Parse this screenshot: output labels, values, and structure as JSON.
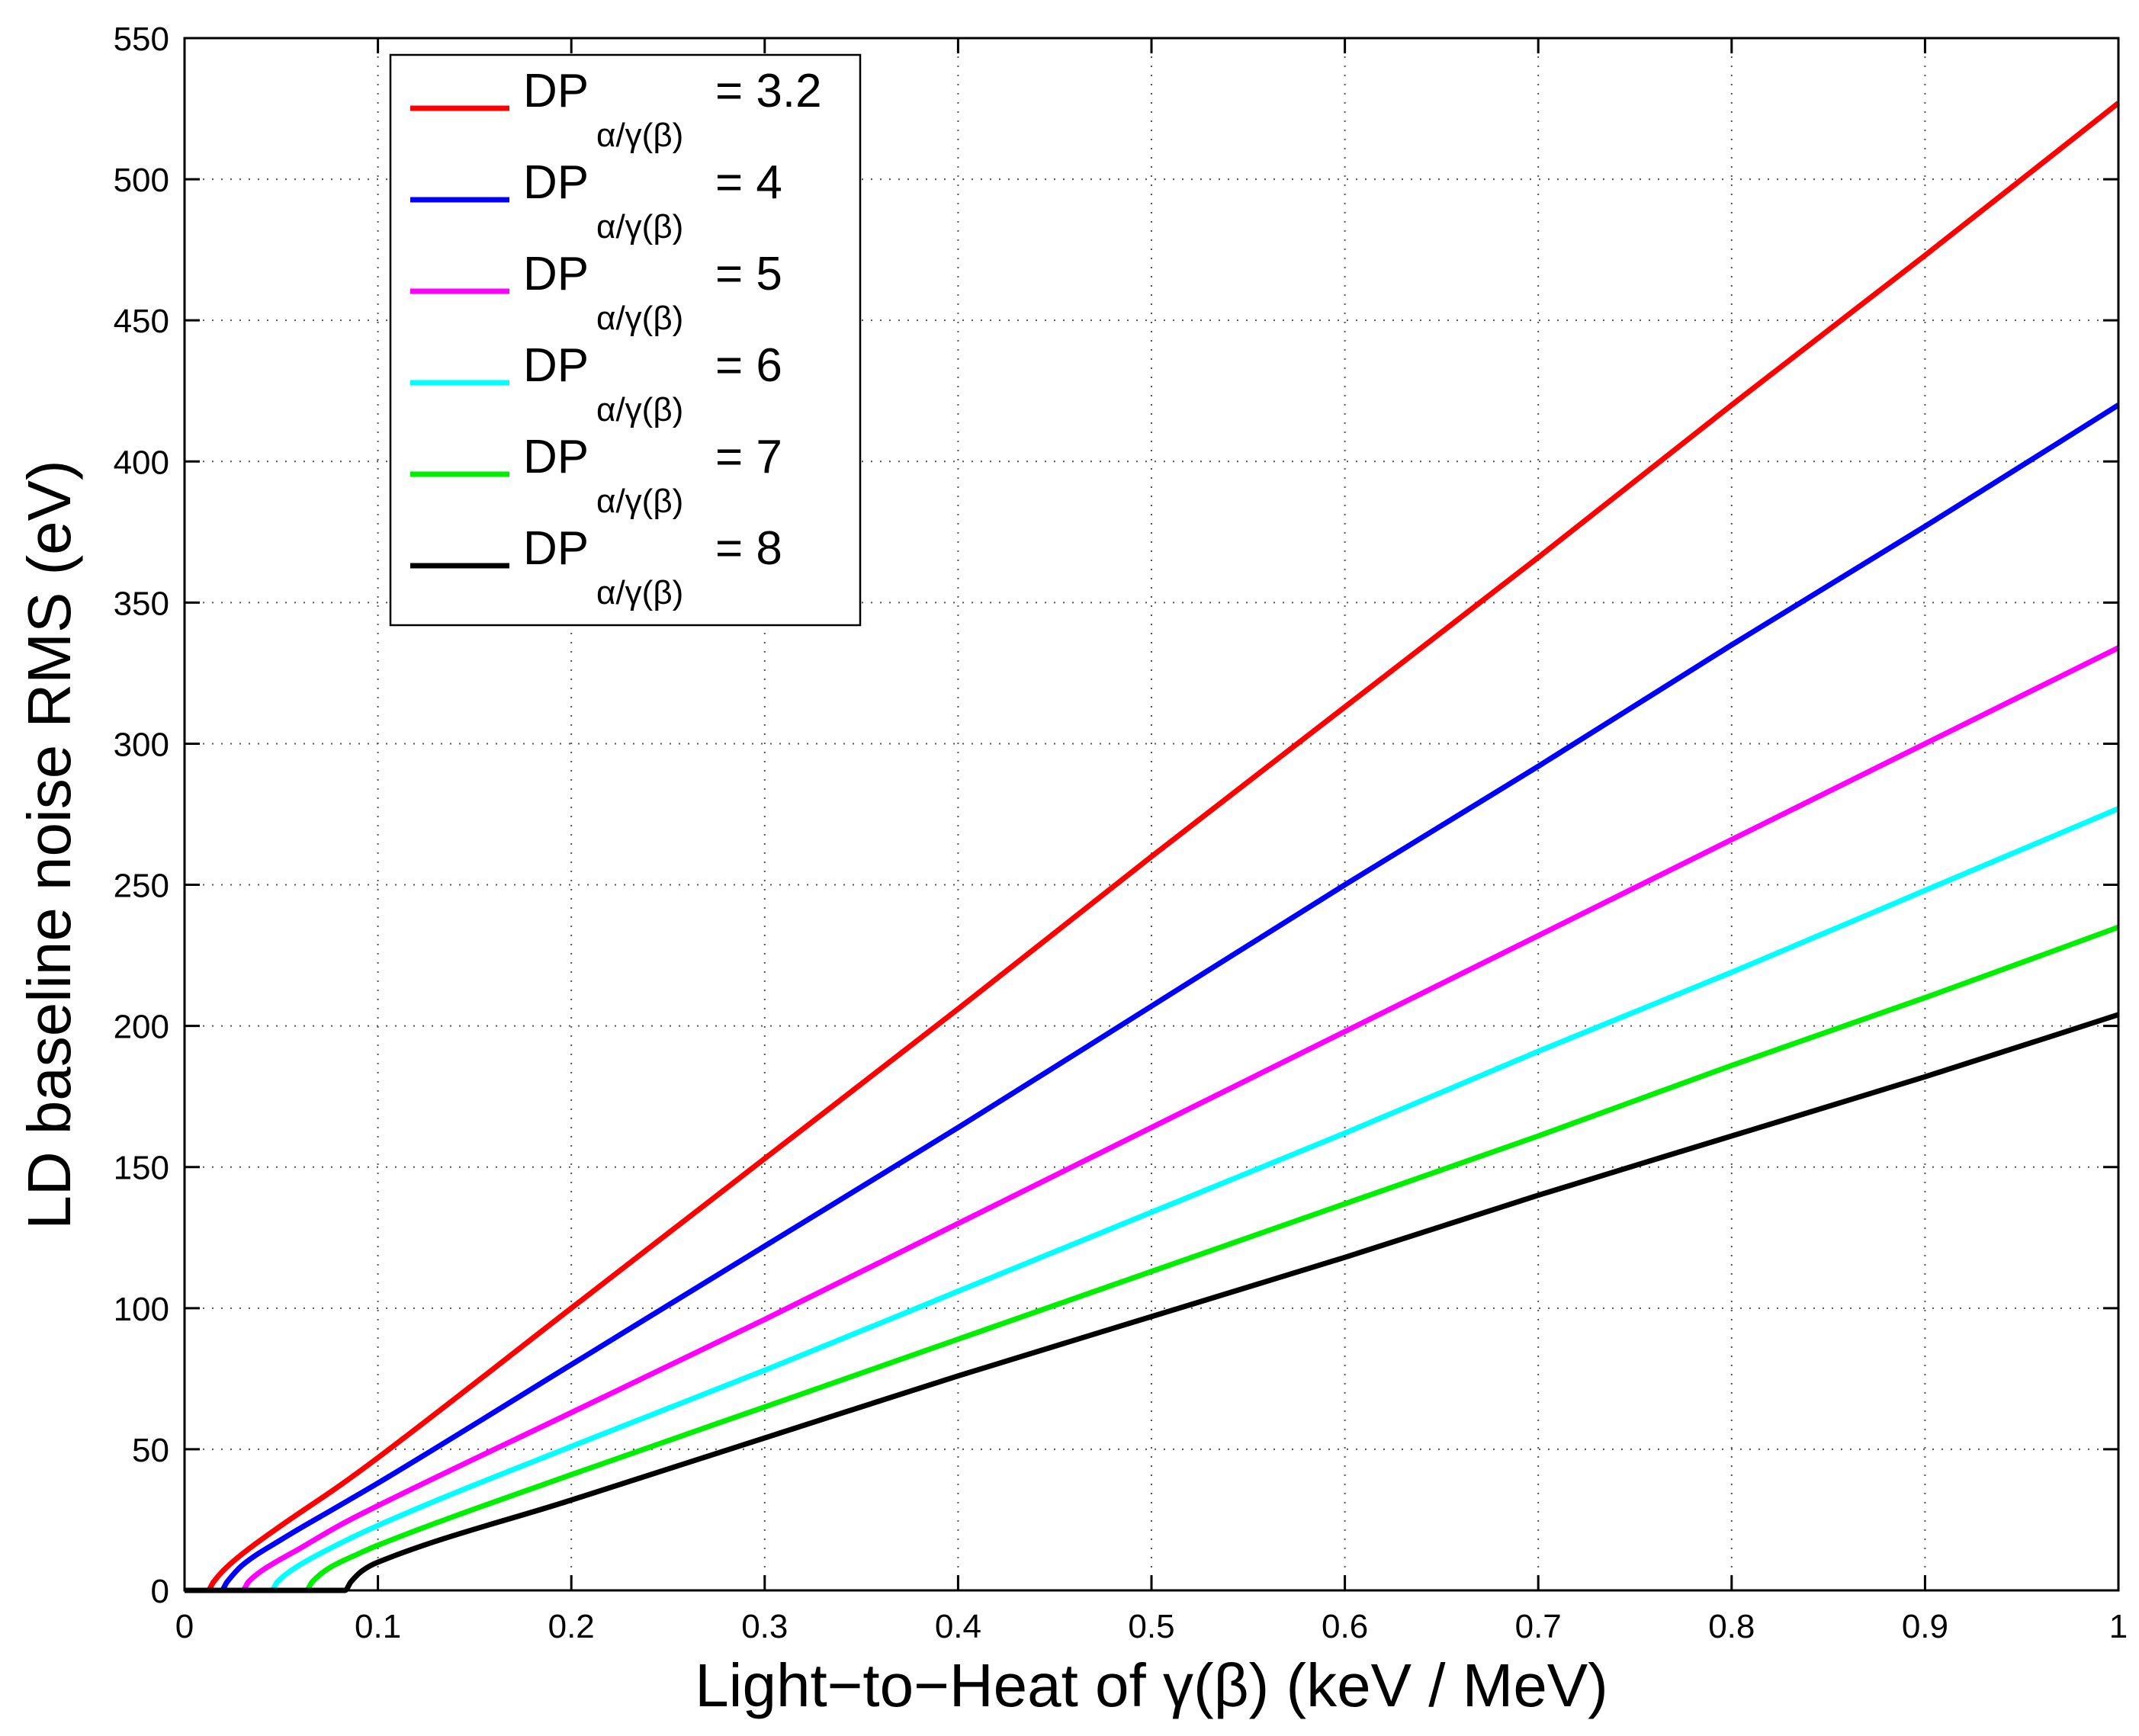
{
  "chart_data": {
    "type": "line",
    "title": "",
    "xlabel": "Light−to−Heat of γ(β) (keV / MeV)",
    "ylabel": "LD baseline noise RMS (eV)",
    "xlim": [
      0,
      1
    ],
    "ylim": [
      0,
      550
    ],
    "xticks": [
      0,
      0.1,
      0.2,
      0.3,
      0.4,
      0.5,
      0.6,
      0.7,
      0.8,
      0.9,
      1
    ],
    "xtick_labels": [
      "0",
      "0.1",
      "0.2",
      "0.3",
      "0.4",
      "0.5",
      "0.6",
      "0.7",
      "0.8",
      "0.9",
      "1"
    ],
    "yticks": [
      0,
      50,
      100,
      150,
      200,
      250,
      300,
      350,
      400,
      450,
      500,
      550
    ],
    "ytick_labels": [
      "0",
      "50",
      "100",
      "150",
      "200",
      "250",
      "300",
      "350",
      "400",
      "450",
      "500",
      "550"
    ],
    "grid": true,
    "legend_position": "top-left",
    "series": [
      {
        "name": "DPα/γ(β) = 3.2",
        "legend_main": "DP",
        "legend_sub": "α/γ(β)",
        "legend_value": "= 3.2",
        "color": "#ff0000",
        "x": [
          0,
          0.012,
          0.015,
          0.02,
          0.03,
          0.05,
          0.08,
          0.1,
          0.2,
          0.3,
          0.4,
          0.5,
          0.6,
          0.7,
          0.8,
          0.9,
          1.0
        ],
        "y": [
          0,
          0,
          3,
          7,
          13,
          23,
          37,
          47,
          100,
          153,
          206,
          260,
          313,
          366,
          420,
          473,
          527
        ]
      },
      {
        "name": "DPα/γ(β) = 4",
        "legend_main": "DP",
        "legend_sub": "α/γ(β)",
        "legend_value": "= 4",
        "color": "#0000ff",
        "x": [
          0,
          0.019,
          0.022,
          0.03,
          0.05,
          0.08,
          0.1,
          0.2,
          0.3,
          0.4,
          0.5,
          0.6,
          0.7,
          0.8,
          0.9,
          1.0
        ],
        "y": [
          0,
          0,
          3,
          9,
          18,
          30,
          38,
          80,
          122,
          164,
          207,
          250,
          292,
          335,
          377,
          420
        ]
      },
      {
        "name": "DPα/γ(β) = 5",
        "legend_main": "DP",
        "legend_sub": "α/γ(β)",
        "legend_value": "= 5",
        "color": "#ff00ff",
        "x": [
          0,
          0.03,
          0.033,
          0.04,
          0.06,
          0.08,
          0.1,
          0.2,
          0.3,
          0.4,
          0.5,
          0.6,
          0.7,
          0.8,
          0.9,
          1.0
        ],
        "y": [
          0,
          0,
          3,
          7,
          15,
          23,
          30,
          63,
          96,
          130,
          164,
          198,
          232,
          266,
          300,
          334
        ]
      },
      {
        "name": "DPα/γ(β) = 6",
        "legend_main": "DP",
        "legend_sub": "α/γ(β)",
        "legend_value": "= 6",
        "color": "#00ffff",
        "x": [
          0,
          0.045,
          0.048,
          0.055,
          0.07,
          0.1,
          0.2,
          0.3,
          0.4,
          0.5,
          0.6,
          0.7,
          0.8,
          0.9,
          1.0
        ],
        "y": [
          0,
          0,
          3,
          7,
          13,
          23,
          51,
          78,
          106,
          134,
          162,
          191,
          219,
          248,
          277
        ]
      },
      {
        "name": "DPα/γ(β) = 7",
        "legend_main": "DP",
        "legend_sub": "α/γ(β)",
        "legend_value": "= 7",
        "color": "#00ee00",
        "x": [
          0,
          0.063,
          0.066,
          0.075,
          0.09,
          0.1,
          0.2,
          0.3,
          0.4,
          0.5,
          0.6,
          0.7,
          0.8,
          0.9,
          1.0
        ],
        "y": [
          0,
          0,
          3,
          8,
          13,
          16,
          41,
          65,
          89,
          113,
          137,
          161,
          186,
          210,
          235
        ]
      },
      {
        "name": "DPα/γ(β) = 8",
        "legend_main": "DP",
        "legend_sub": "α/γ(β)",
        "legend_value": "= 8",
        "color": "#000000",
        "x": [
          0,
          0.083,
          0.086,
          0.092,
          0.1,
          0.2,
          0.3,
          0.4,
          0.5,
          0.6,
          0.7,
          0.8,
          0.9,
          1.0
        ],
        "y": [
          0,
          0,
          3,
          7,
          10,
          32,
          54,
          76,
          97,
          118,
          140,
          161,
          182,
          204
        ]
      }
    ]
  }
}
